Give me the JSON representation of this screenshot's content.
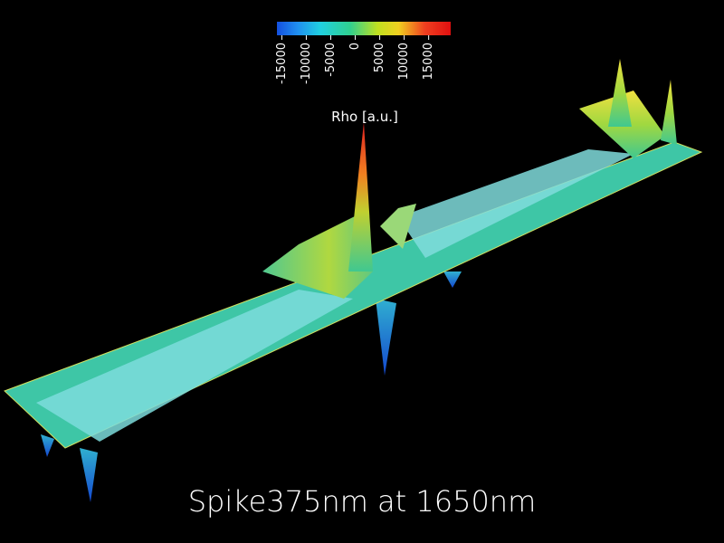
{
  "colorbar": {
    "label": "Rho [a.u.]",
    "lim": [
      -16000,
      19500
    ],
    "ticks": [
      -15000,
      -10000,
      -5000,
      0,
      5000,
      10000,
      15000
    ]
  },
  "caption": "Spike375nm at 1650nm"
}
